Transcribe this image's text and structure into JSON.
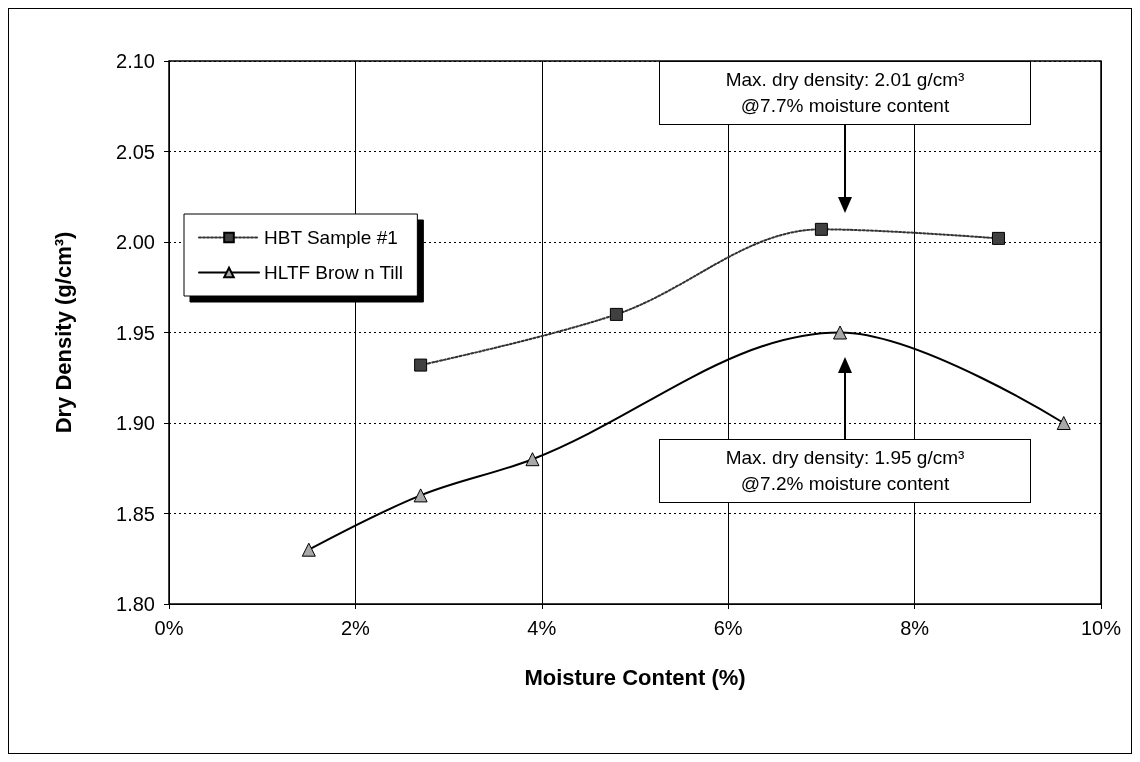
{
  "chart_data": {
    "type": "line",
    "xlabel": "Moisture Content (%)",
    "ylabel": "Dry Density (g/cm³)",
    "xlim": [
      0,
      10
    ],
    "xticks": [
      {
        "value": 0,
        "label": "0%"
      },
      {
        "value": 2,
        "label": "2%"
      },
      {
        "value": 4,
        "label": "4%"
      },
      {
        "value": 6,
        "label": "6%"
      },
      {
        "value": 8,
        "label": "8%"
      },
      {
        "value": 10,
        "label": "10%"
      }
    ],
    "ylim": [
      1.8,
      2.1
    ],
    "yticks": [
      {
        "value": 1.8,
        "label": "1.80"
      },
      {
        "value": 1.85,
        "label": "1.85"
      },
      {
        "value": 1.9,
        "label": "1.90"
      },
      {
        "value": 1.95,
        "label": "1.95"
      },
      {
        "value": 2.0,
        "label": "2.00"
      },
      {
        "value": 2.05,
        "label": "2.05"
      },
      {
        "value": 2.1,
        "label": "2.10"
      }
    ],
    "grid": true,
    "legend": "left",
    "series": [
      {
        "name": "HBT Sample #1",
        "color": "#333333",
        "marker": "square",
        "line_style": "dotted",
        "x": [
          2.7,
          4.8,
          7.0,
          8.9
        ],
        "values": [
          1.932,
          1.96,
          2.007,
          2.002
        ]
      },
      {
        "name": "HLTF Brow n Till",
        "color": "#000000",
        "marker": "triangle",
        "line_style": "solid",
        "x": [
          1.5,
          2.7,
          3.9,
          7.2,
          9.6
        ],
        "values": [
          1.83,
          1.86,
          1.88,
          1.95,
          1.9
        ]
      }
    ],
    "annotations": [
      "Max. dry density: 2.01 g/cm³\n@7.7% moisture content",
      "Max. dry density: 1.95 g/cm³\n@7.2% moisture content"
    ]
  }
}
